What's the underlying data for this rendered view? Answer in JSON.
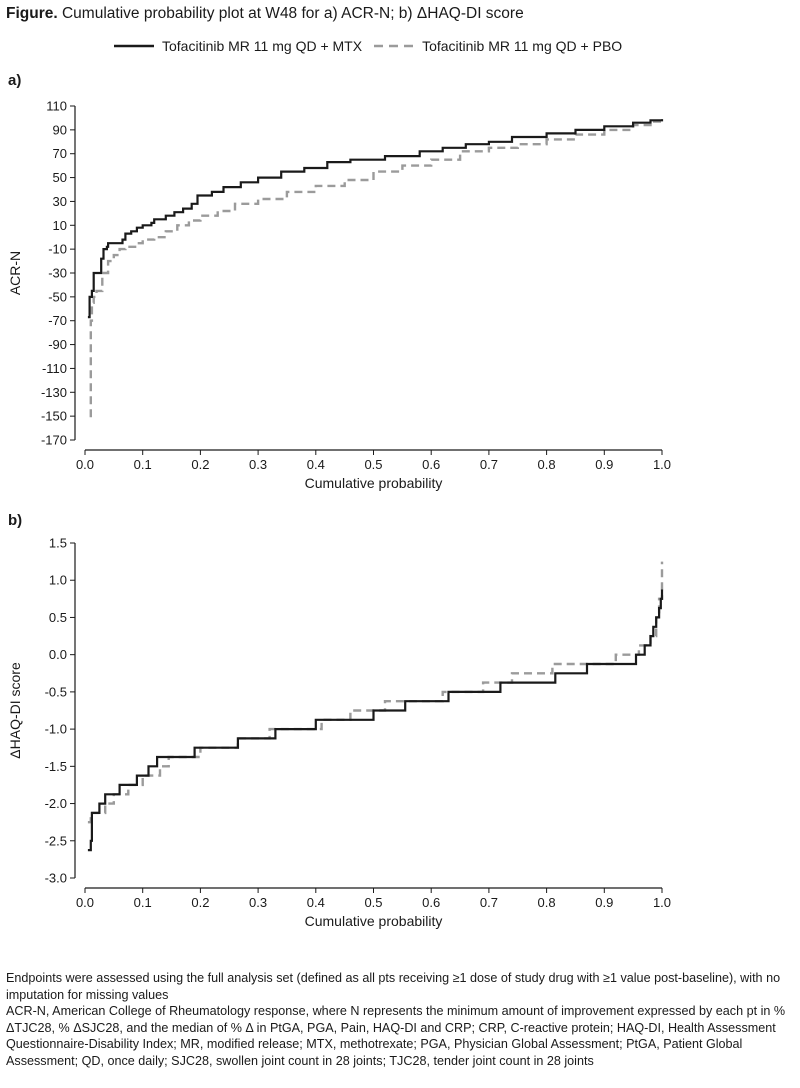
{
  "title": {
    "prefix": "Figure.",
    "text": "Cumulative probability plot at W48 for a) ACR-N; b) ΔHAQ-DI score"
  },
  "legend": [
    {
      "name": "Tofacitinib MR 11 mg QD + MTX",
      "color": "#1a1a1a",
      "dash": "solid"
    },
    {
      "name": "Tofacitinib MR 11 mg QD + PBO",
      "color": "#9b9b9b",
      "dash": "dashed"
    }
  ],
  "chart_data": [
    {
      "panel_label": "a)",
      "type": "line",
      "step": true,
      "xlabel": "Cumulative probability",
      "ylabel": "ACR-N",
      "xlim": [
        0.0,
        1.0
      ],
      "ylim": [
        -170,
        110
      ],
      "xticks": [
        "0.0",
        "0.1",
        "0.2",
        "0.3",
        "0.4",
        "0.5",
        "0.6",
        "0.7",
        "0.8",
        "0.9",
        "1.0"
      ],
      "yticks": [
        "110",
        "90",
        "70",
        "50",
        "30",
        "10",
        "-10",
        "-30",
        "-50",
        "-70",
        "-90",
        "-110",
        "-130",
        "-150",
        "-170"
      ],
      "grid": false,
      "series": [
        {
          "name": "Tofacitinib MR 11 mg QD + MTX",
          "color": "#1a1a1a",
          "dash": "solid",
          "points": [
            [
              0.005,
              -67
            ],
            [
              0.008,
              -50
            ],
            [
              0.012,
              -45
            ],
            [
              0.015,
              -30
            ],
            [
              0.025,
              -30
            ],
            [
              0.028,
              -18
            ],
            [
              0.032,
              -10
            ],
            [
              0.038,
              -8
            ],
            [
              0.04,
              -5
            ],
            [
              0.06,
              -5
            ],
            [
              0.065,
              -2
            ],
            [
              0.07,
              3
            ],
            [
              0.08,
              5
            ],
            [
              0.09,
              8
            ],
            [
              0.1,
              10
            ],
            [
              0.115,
              12
            ],
            [
              0.12,
              15
            ],
            [
              0.14,
              18
            ],
            [
              0.155,
              21
            ],
            [
              0.17,
              24
            ],
            [
              0.185,
              28
            ],
            [
              0.195,
              35
            ],
            [
              0.22,
              38
            ],
            [
              0.24,
              42
            ],
            [
              0.27,
              46
            ],
            [
              0.3,
              50
            ],
            [
              0.34,
              55
            ],
            [
              0.38,
              58
            ],
            [
              0.42,
              63
            ],
            [
              0.46,
              65
            ],
            [
              0.52,
              68
            ],
            [
              0.58,
              72
            ],
            [
              0.62,
              75
            ],
            [
              0.66,
              78
            ],
            [
              0.7,
              80
            ],
            [
              0.74,
              84
            ],
            [
              0.8,
              87
            ],
            [
              0.85,
              90
            ],
            [
              0.9,
              93
            ],
            [
              0.95,
              96
            ],
            [
              0.98,
              98
            ],
            [
              1.0,
              99
            ]
          ]
        },
        {
          "name": "Tofacitinib MR 11 mg QD + PBO",
          "color": "#9b9b9b",
          "dash": "dashed",
          "points": [
            [
              0.008,
              -150
            ],
            [
              0.01,
              -70
            ],
            [
              0.012,
              -55
            ],
            [
              0.015,
              -50
            ],
            [
              0.02,
              -45
            ],
            [
              0.03,
              -30
            ],
            [
              0.04,
              -20
            ],
            [
              0.05,
              -15
            ],
            [
              0.06,
              -10
            ],
            [
              0.07,
              -8
            ],
            [
              0.09,
              -5
            ],
            [
              0.1,
              -2
            ],
            [
              0.12,
              0
            ],
            [
              0.14,
              5
            ],
            [
              0.16,
              10
            ],
            [
              0.18,
              14
            ],
            [
              0.2,
              18
            ],
            [
              0.23,
              22
            ],
            [
              0.26,
              28
            ],
            [
              0.3,
              32
            ],
            [
              0.35,
              38
            ],
            [
              0.4,
              43
            ],
            [
              0.45,
              48
            ],
            [
              0.5,
              55
            ],
            [
              0.55,
              60
            ],
            [
              0.6,
              65
            ],
            [
              0.65,
              72
            ],
            [
              0.7,
              75
            ],
            [
              0.75,
              78
            ],
            [
              0.8,
              82
            ],
            [
              0.85,
              86
            ],
            [
              0.9,
              90
            ],
            [
              0.95,
              94
            ],
            [
              0.98,
              97
            ],
            [
              1.0,
              99
            ]
          ]
        }
      ]
    },
    {
      "panel_label": "b)",
      "type": "line",
      "step": true,
      "xlabel": "Cumulative probability",
      "ylabel": "ΔHAQ-DI score",
      "xlim": [
        0.0,
        1.0
      ],
      "ylim": [
        -3.0,
        1.5
      ],
      "xticks": [
        "0.0",
        "0.1",
        "0.2",
        "0.3",
        "0.4",
        "0.5",
        "0.6",
        "0.7",
        "0.8",
        "0.9",
        "1.0"
      ],
      "yticks": [
        "1.5",
        "1.0",
        "0.5",
        "0.0",
        "-0.5",
        "-1.0",
        "-1.5",
        "-2.0",
        "-2.5",
        "-3.0"
      ],
      "grid": false,
      "series": [
        {
          "name": "Tofacitinib MR 11 mg QD + MTX",
          "color": "#1a1a1a",
          "dash": "solid",
          "points": [
            [
              0.005,
              -2.625
            ],
            [
              0.01,
              -2.5
            ],
            [
              0.012,
              -2.125
            ],
            [
              0.025,
              -2.0
            ],
            [
              0.035,
              -1.875
            ],
            [
              0.06,
              -1.75
            ],
            [
              0.09,
              -1.625
            ],
            [
              0.11,
              -1.5
            ],
            [
              0.125,
              -1.375
            ],
            [
              0.19,
              -1.25
            ],
            [
              0.265,
              -1.125
            ],
            [
              0.33,
              -1.0
            ],
            [
              0.4,
              -0.875
            ],
            [
              0.5,
              -0.75
            ],
            [
              0.555,
              -0.625
            ],
            [
              0.63,
              -0.5
            ],
            [
              0.72,
              -0.375
            ],
            [
              0.815,
              -0.25
            ],
            [
              0.87,
              -0.125
            ],
            [
              0.955,
              0.0
            ],
            [
              0.97,
              0.125
            ],
            [
              0.98,
              0.25
            ],
            [
              0.985,
              0.375
            ],
            [
              0.99,
              0.5
            ],
            [
              0.995,
              0.625
            ],
            [
              0.998,
              0.75
            ],
            [
              1.0,
              0.875
            ]
          ]
        },
        {
          "name": "Tofacitinib MR 11 mg QD + PBO",
          "color": "#9b9b9b",
          "dash": "dashed",
          "points": [
            [
              0.005,
              -2.25
            ],
            [
              0.01,
              -2.125
            ],
            [
              0.035,
              -2.0
            ],
            [
              0.05,
              -1.875
            ],
            [
              0.075,
              -1.75
            ],
            [
              0.1,
              -1.625
            ],
            [
              0.13,
              -1.5
            ],
            [
              0.145,
              -1.375
            ],
            [
              0.2,
              -1.25
            ],
            [
              0.265,
              -1.125
            ],
            [
              0.32,
              -1.0
            ],
            [
              0.41,
              -0.875
            ],
            [
              0.46,
              -0.75
            ],
            [
              0.52,
              -0.625
            ],
            [
              0.62,
              -0.5
            ],
            [
              0.69,
              -0.375
            ],
            [
              0.74,
              -0.25
            ],
            [
              0.81,
              -0.125
            ],
            [
              0.92,
              0.0
            ],
            [
              0.96,
              0.125
            ],
            [
              0.98,
              0.25
            ],
            [
              0.99,
              0.5
            ],
            [
              0.995,
              0.75
            ],
            [
              1.0,
              1.25
            ]
          ]
        }
      ]
    }
  ],
  "footnote": [
    "Endpoints were assessed using the full analysis set (defined as all pts receiving ≥1 dose of study drug with ≥1 value post-baseline), with no imputation for missing values",
    "ACR-N, American College of Rheumatology response, where N represents the minimum amount of improvement expressed by each pt in % ΔTJC28, % ΔSJC28, and the median of % Δ in PtGA, PGA, Pain, HAQ-DI and CRP; CRP, C-reactive protein; HAQ-DI, Health Assessment Questionnaire-Disability Index; MR, modified release; MTX, methotrexate; PGA, Physician Global Assessment; PtGA, Patient Global Assessment; QD, once daily; SJC28, swollen joint count in 28 joints; TJC28, tender joint count in 28 joints"
  ]
}
